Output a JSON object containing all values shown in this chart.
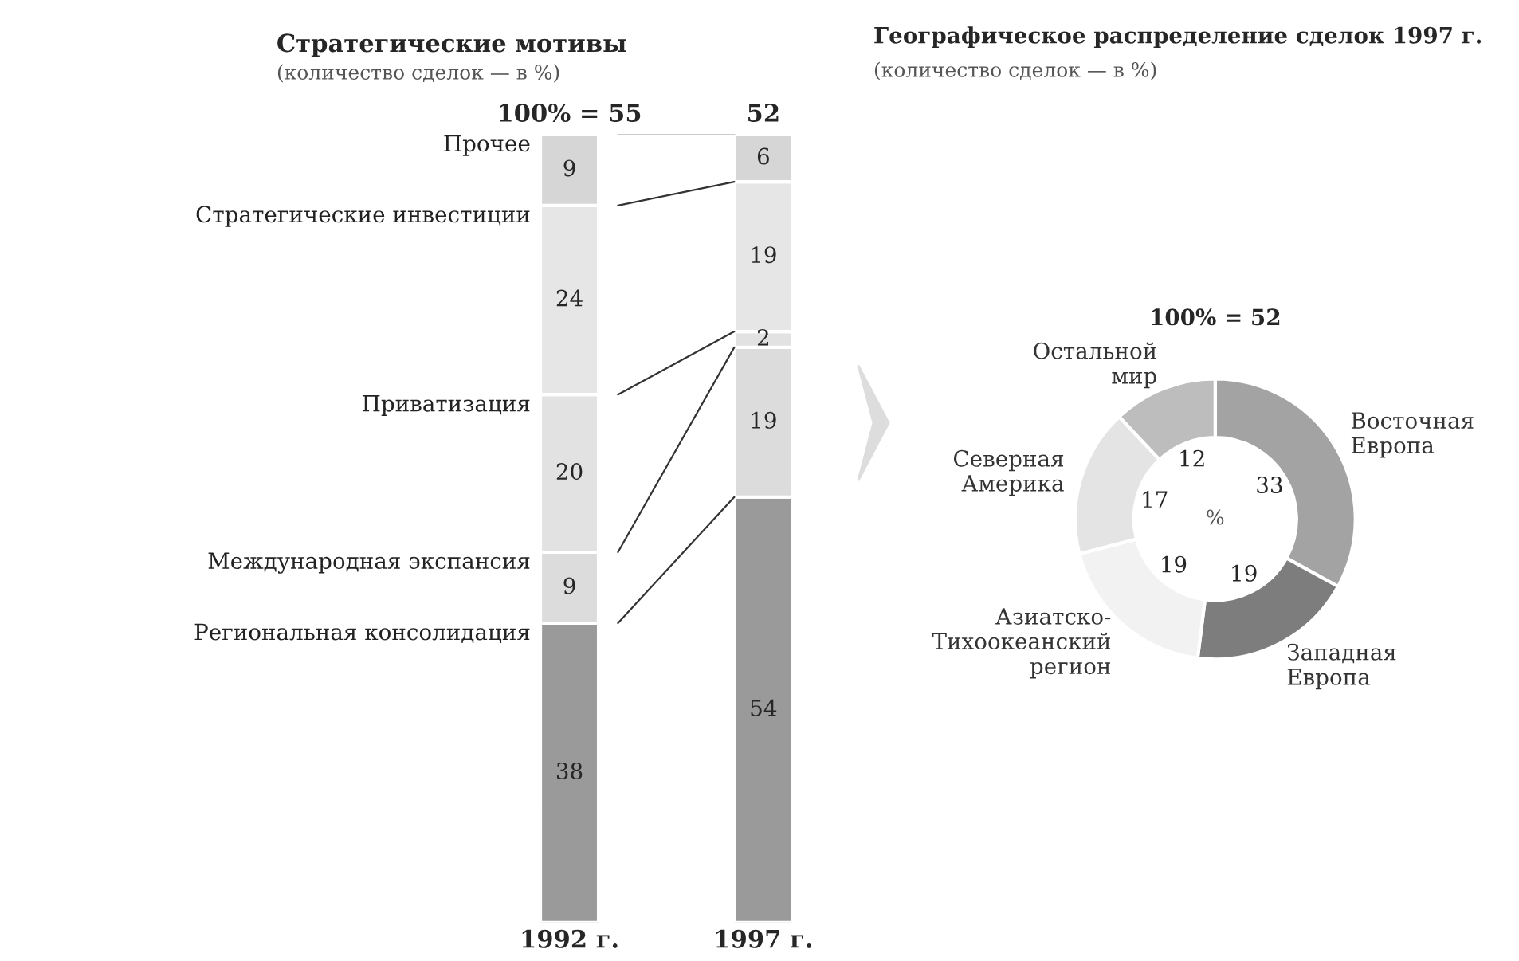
{
  "chart_data": [
    {
      "type": "bar",
      "title": "Стратегические мотивы",
      "subtitle": "(количество сделок — в %)",
      "categories": [
        "1992 г.",
        "1997 г."
      ],
      "stacked": true,
      "data_labels": true,
      "annotations": [
        "100% = 55",
        "52"
      ],
      "series": [
        {
          "name": "Региональная консолидация",
          "color": "#9a9a9a",
          "values": [
            38,
            54
          ]
        },
        {
          "name": "Международная экспансия",
          "color": "#dcdcdc",
          "values": [
            9,
            19
          ]
        },
        {
          "name": "Приватизация",
          "color": "#e2e2e2",
          "values": [
            20,
            2
          ]
        },
        {
          "name": "Стратегические инвестиции",
          "color": "#e6e6e6",
          "values": [
            24,
            19
          ]
        },
        {
          "name": "Прочее",
          "color": "#d6d6d6",
          "values": [
            9,
            6
          ]
        }
      ]
    },
    {
      "type": "donut",
      "title": "Географическое распределение сделок 1997 г.",
      "subtitle": "(количество сделок — в %)",
      "annotations": [
        "100% = 52",
        "%"
      ],
      "data_labels": true,
      "categories": [
        "Восточная\nЕвропа",
        "Западная\nЕвропа",
        "Азиатско-\nТихоокеанский\nрегион",
        "Северная\nАмерика",
        "Остальной\nмир"
      ],
      "values": [
        33,
        19,
        19,
        17,
        12
      ],
      "colors": [
        "#a3a3a3",
        "#7d7d7d",
        "#f2f2f2",
        "#e4e4e4",
        "#bdbdbd"
      ]
    }
  ]
}
